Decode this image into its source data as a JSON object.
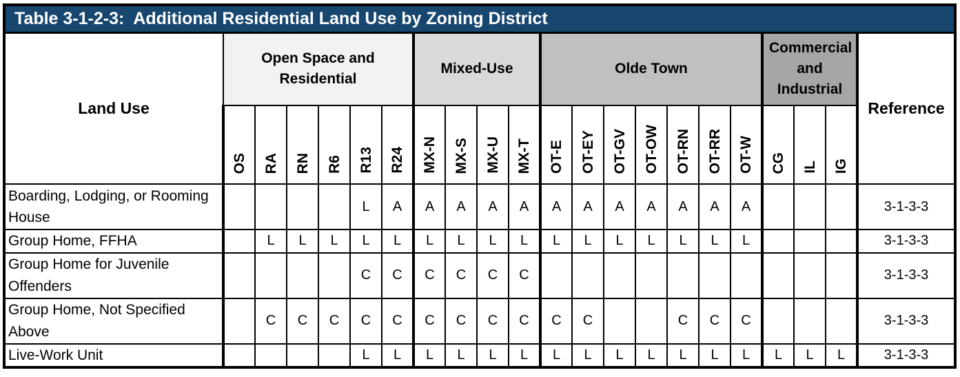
{
  "title": "Table 3-1-2-3:  Additional Residential Land Use by Zoning District",
  "colors": {
    "title_bar": "#17466F",
    "title_text": "#ffffff",
    "border": "#000000",
    "group_open_space": "#F2F2F2",
    "group_mixed_use": "#D9D9D9",
    "group_olde_town": "#C0C0C0",
    "group_commercial": "#A6A6A6"
  },
  "table": {
    "land_use_header": "Land Use",
    "reference_header": "Reference",
    "groups": [
      {
        "label": "Open Space and Residential",
        "color": "#F2F2F2",
        "columns": [
          "OS",
          "RA",
          "RN",
          "R6",
          "R13",
          "R24"
        ]
      },
      {
        "label": "Mixed-Use",
        "color": "#D9D9D9",
        "columns": [
          "MX-N",
          "MX-S",
          "MX-U",
          "MX-T"
        ]
      },
      {
        "label": "Olde Town",
        "color": "#C0C0C0",
        "columns": [
          "OT-E",
          "OT-EY",
          "OT-GV",
          "OT-OW",
          "OT-RN",
          "OT-RR",
          "OT-W"
        ]
      },
      {
        "label": "Commercial and Industrial",
        "color": "#A6A6A6",
        "columns": [
          "CG",
          "IL",
          "IG"
        ]
      }
    ],
    "rows": [
      {
        "land_use": "Boarding, Lodging, or Rooming House",
        "values": [
          "",
          "",
          "",
          "",
          "L",
          "A",
          "A",
          "A",
          "A",
          "A",
          "A",
          "A",
          "A",
          "A",
          "A",
          "A",
          "A",
          "",
          "",
          ""
        ],
        "reference": "3-1-3-3"
      },
      {
        "land_use": "Group Home, FFHA",
        "values": [
          "",
          "L",
          "L",
          "L",
          "L",
          "L",
          "L",
          "L",
          "L",
          "L",
          "L",
          "L",
          "L",
          "L",
          "L",
          "L",
          "L",
          "",
          "",
          ""
        ],
        "reference": "3-1-3-3"
      },
      {
        "land_use": "Group Home for Juvenile Offenders",
        "values": [
          "",
          "",
          "",
          "",
          "C",
          "C",
          "C",
          "C",
          "C",
          "C",
          "",
          "",
          "",
          "",
          "",
          "",
          "",
          "",
          "",
          ""
        ],
        "reference": "3-1-3-3"
      },
      {
        "land_use": "Group Home, Not Specified Above",
        "values": [
          "",
          "C",
          "C",
          "C",
          "C",
          "C",
          "C",
          "C",
          "C",
          "C",
          "C",
          "C",
          "",
          "",
          "C",
          "C",
          "C",
          "",
          "",
          ""
        ],
        "reference": "3-1-3-3"
      },
      {
        "land_use": "Live-Work Unit",
        "values": [
          "",
          "",
          "",
          "",
          "L",
          "L",
          "L",
          "L",
          "L",
          "L",
          "L",
          "L",
          "L",
          "L",
          "L",
          "L",
          "L",
          "L",
          "L",
          "L"
        ],
        "reference": "3-1-3-3"
      }
    ]
  }
}
